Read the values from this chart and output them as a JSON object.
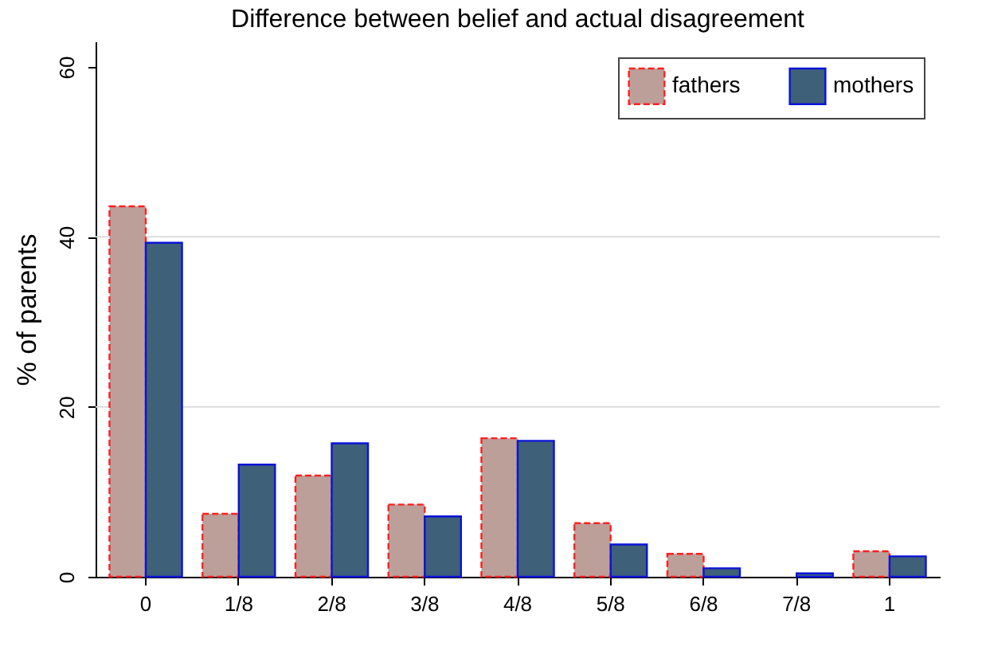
{
  "chart_data": {
    "type": "bar",
    "title": "Difference between belief and actual disagreement",
    "ylabel": "% of parents",
    "categories": [
      "0",
      "1/8",
      "2/8",
      "3/8",
      "4/8",
      "5/8",
      "6/8",
      "7/8",
      "1"
    ],
    "series": [
      {
        "name": "fathers",
        "color": "#bc9f99",
        "values": [
          43.6,
          7.4,
          11.9,
          8.5,
          16.3,
          6.3,
          2.7,
          null,
          3.0
        ]
      },
      {
        "name": "mothers",
        "color": "#3e6079",
        "values": [
          39.3,
          13.2,
          15.7,
          7.1,
          16.0,
          3.8,
          1.0,
          0.4,
          2.4
        ]
      }
    ],
    "ylim": [
      0,
      63
    ],
    "yticks": [
      0,
      20,
      40,
      60
    ],
    "grid": "y",
    "legend": "top right"
  }
}
